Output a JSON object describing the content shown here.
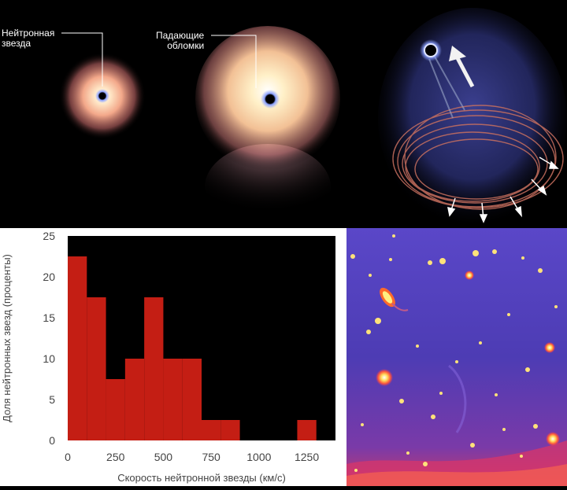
{
  "illustration": {
    "label_star": "Нейтронная звезда",
    "label_star_lines": [
      "Нейтронная",
      "звезда"
    ],
    "label_debris": "Падающие обломки",
    "label_debris_lines": [
      "Падающие",
      "обломки"
    ]
  },
  "chart_data": {
    "type": "bar",
    "title": "",
    "xlabel": "Скорость нейтронной звезды (км/с)",
    "ylabel": "Доля нейтронных звезд (проценты)",
    "xlim": [
      0,
      1400
    ],
    "ylim": [
      0,
      25
    ],
    "xticks": [
      "0",
      "250",
      "500",
      "750",
      "1000",
      "1250"
    ],
    "yticks": [
      "0",
      "5",
      "10",
      "15",
      "20",
      "25"
    ],
    "bin_width": 100,
    "bins": [
      {
        "x0": 0,
        "x1": 100,
        "value": 22.5
      },
      {
        "x0": 100,
        "x1": 200,
        "value": 17.5
      },
      {
        "x0": 200,
        "x1": 300,
        "value": 7.5
      },
      {
        "x0": 300,
        "x1": 400,
        "value": 10
      },
      {
        "x0": 400,
        "x1": 500,
        "value": 17.5
      },
      {
        "x0": 500,
        "x1": 600,
        "value": 10
      },
      {
        "x0": 600,
        "x1": 700,
        "value": 10
      },
      {
        "x0": 700,
        "x1": 800,
        "value": 2.5
      },
      {
        "x0": 800,
        "x1": 900,
        "value": 2.5
      },
      {
        "x0": 900,
        "x1": 1000,
        "value": 0
      },
      {
        "x0": 1000,
        "x1": 1100,
        "value": 0
      },
      {
        "x0": 1100,
        "x1": 1200,
        "value": 0
      },
      {
        "x0": 1200,
        "x1": 1300,
        "value": 2.5
      }
    ],
    "bar_color": "#c41e14",
    "plot_background": "#000000",
    "grid": false
  },
  "sky_image": {
    "colors": [
      "#4a3bb0",
      "#6f4fd6",
      "#e0404a",
      "#ffd64a"
    ]
  }
}
